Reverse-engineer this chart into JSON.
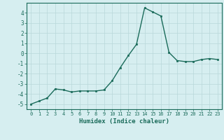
{
  "x": [
    0,
    1,
    2,
    3,
    4,
    5,
    6,
    7,
    8,
    9,
    10,
    11,
    12,
    13,
    14,
    15,
    16,
    17,
    18,
    19,
    20,
    21,
    22,
    23
  ],
  "y": [
    -5.0,
    -4.7,
    -4.4,
    -3.5,
    -3.6,
    -3.8,
    -3.7,
    -3.7,
    -3.7,
    -3.6,
    -2.7,
    -1.4,
    -0.2,
    0.9,
    4.5,
    4.1,
    3.7,
    0.1,
    -0.7,
    -0.8,
    -0.8,
    -0.6,
    -0.5,
    -0.6
  ],
  "ylim": [
    -5.5,
    5.0
  ],
  "yticks": [
    -5,
    -4,
    -3,
    -2,
    -1,
    0,
    1,
    2,
    3,
    4
  ],
  "xticks": [
    0,
    1,
    2,
    3,
    4,
    5,
    6,
    7,
    8,
    9,
    10,
    11,
    12,
    13,
    14,
    15,
    16,
    17,
    18,
    19,
    20,
    21,
    22,
    23
  ],
  "xlabel": "Humidex (Indice chaleur)",
  "line_color": "#1a6b5a",
  "marker_color": "#1a6b5a",
  "bg_color": "#d6eef0",
  "grid_color": "#b8d8da",
  "tick_color": "#1a6b5a",
  "xlabel_color": "#1a6b5a"
}
